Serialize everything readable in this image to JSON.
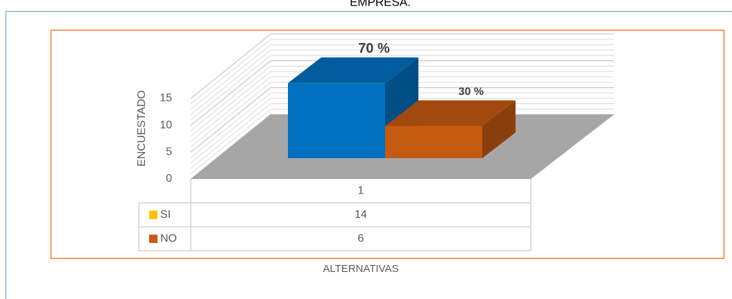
{
  "chart_data": {
    "type": "bar3d",
    "title": "EMPRESA.",
    "categories": [
      "1"
    ],
    "series": [
      {
        "name": "SI",
        "color": "#0070c0",
        "legend_color": "#ffc000",
        "values": [
          14
        ],
        "value_labels": [
          "70 %"
        ]
      },
      {
        "name": "NO",
        "color": "#c55a11",
        "legend_color": "#c55a11",
        "values": [
          6
        ],
        "value_labels": [
          "30 %"
        ]
      }
    ],
    "ylabel": "ENCUESTADO",
    "xlabel": "ALTERNATIVAS",
    "ylim": [
      0,
      15
    ],
    "yticks": [
      0,
      5,
      10,
      15
    ],
    "grid": true
  }
}
